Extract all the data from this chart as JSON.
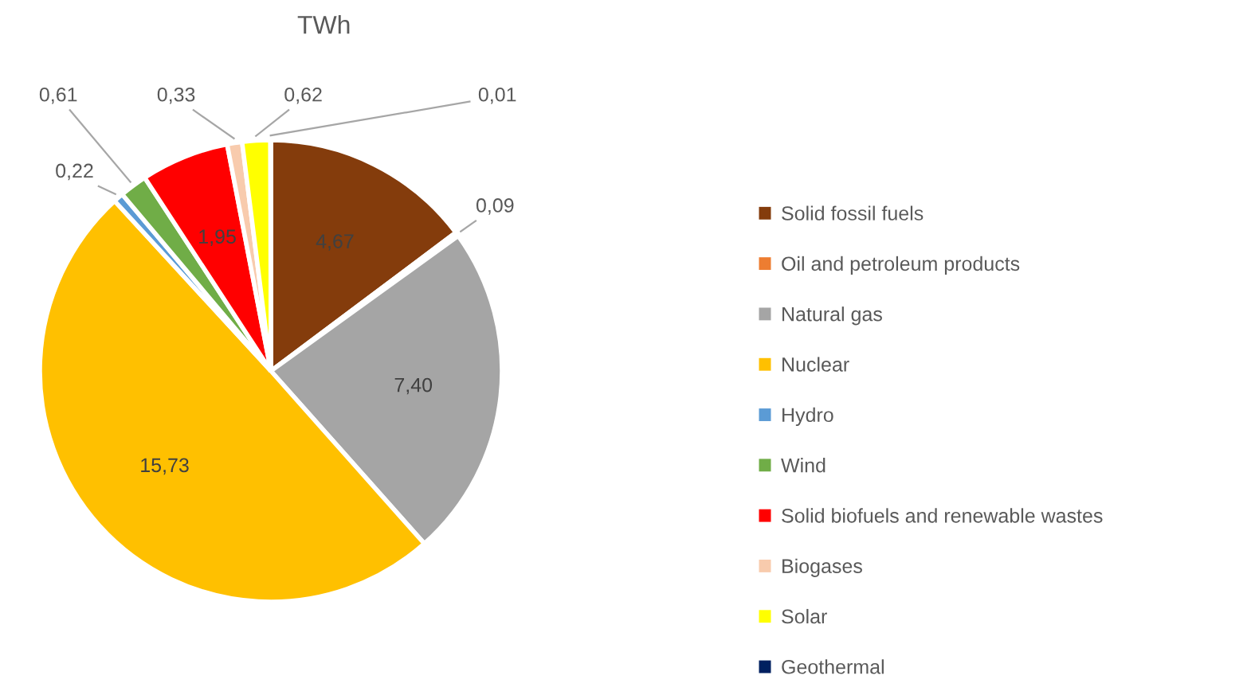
{
  "chart_data": {
    "type": "pie",
    "title": "TWh",
    "categories": [
      "Solid fossil fuels",
      "Oil and petroleum products",
      "Natural gas",
      "Nuclear",
      "Hydro",
      "Wind",
      "Solid biofuels and renewable wastes",
      "Biogases",
      "Solar",
      "Geothermal"
    ],
    "values": [
      4.67,
      0.09,
      7.4,
      15.73,
      0.22,
      0.61,
      1.95,
      0.33,
      0.62,
      0.01
    ],
    "value_labels": [
      "4,67",
      "0,09",
      "7,40",
      "15,73",
      "0,22",
      "0,61",
      "1,95",
      "0,33",
      "0,62",
      "0,01"
    ],
    "colors": [
      "#843c0c",
      "#ed7d31",
      "#a5a5a5",
      "#ffc000",
      "#5b9bd5",
      "#70ad47",
      "#ff0000",
      "#f8cbad",
      "#ffff00",
      "#002060"
    ],
    "legend": "right"
  }
}
